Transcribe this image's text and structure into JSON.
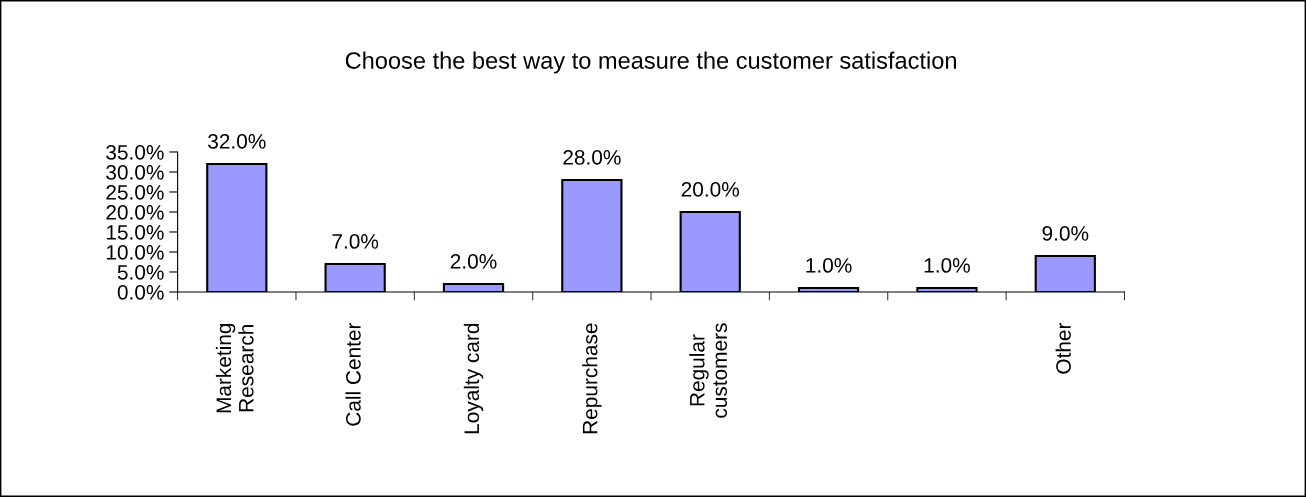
{
  "chart_data": {
    "type": "bar",
    "title": "Choose the best way to measure the customer satisfaction",
    "categories": [
      "Marketing\nResearch",
      "Call Center",
      "Loyalty card",
      "Repurchase",
      "Regular\ncustomers",
      null,
      null,
      "Other"
    ],
    "values": [
      32,
      7,
      2,
      28,
      20,
      1,
      1,
      9
    ],
    "value_labels": [
      "32.0%",
      "7.0%",
      "2.0%",
      "28.0%",
      "20.0%",
      "1.0%",
      "1.0%",
      "9.0%"
    ],
    "color": "#9999ff",
    "ylim": [
      0,
      35
    ],
    "yticks": [
      {
        "value": 0,
        "label": "0.0%"
      },
      {
        "value": 5,
        "label": "5.0%"
      },
      {
        "value": 10,
        "label": "10.0%"
      },
      {
        "value": 15,
        "label": "15.0%"
      },
      {
        "value": 20,
        "label": "20.0%"
      },
      {
        "value": 25,
        "label": "25.0%"
      },
      {
        "value": 30,
        "label": "30.0%"
      },
      {
        "value": 35,
        "label": "35.0%"
      }
    ],
    "grid": false,
    "legend": false
  }
}
